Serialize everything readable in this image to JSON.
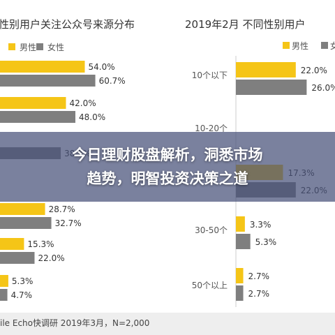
{
  "colors": {
    "male": "#f5c517",
    "female": "#7f7f7f",
    "text": "#333333",
    "banner_bg": "#465078"
  },
  "banner": {
    "line1": "今日理财股盘解析，洞悉市场",
    "line2": "趋势，明智投资决策之道"
  },
  "footer": {
    "text": "ile Echo快调研 2019年3月，N=2,000"
  },
  "chart_data": [
    {
      "type": "bar",
      "orientation": "horizontal",
      "title": "性别用户关注公众号来源分布",
      "legend": [
        "男性",
        "女性"
      ],
      "legend_position": "top-left",
      "series": [
        {
          "name": "男性",
          "values": [
            54.0,
            42.0,
            null,
            null,
            28.7,
            15.3,
            5.3
          ]
        },
        {
          "name": "女性",
          "values": [
            60.7,
            48.0,
            38.7,
            null,
            32.7,
            22.0,
            4.7
          ]
        }
      ],
      "labels": {
        "男性": [
          "54.0%",
          "42.0%",
          "",
          "",
          "28.7%",
          "15.3%",
          "5.3%"
        ],
        "女性": [
          "60.7%",
          "48.0%",
          "38.7%",
          "",
          "32.7%",
          "22.0%",
          "4.7%"
        ]
      }
    },
    {
      "type": "bar",
      "orientation": "horizontal",
      "title": "2019年2月 不同性别用户",
      "legend": [
        "男性",
        "女"
      ],
      "legend_position": "top-right",
      "categories": [
        "10个以下",
        "10-20个",
        "",
        "30-50个",
        "50个以上"
      ],
      "series": [
        {
          "name": "男性",
          "values": [
            22.0,
            null,
            17.3,
            3.3,
            2.7
          ]
        },
        {
          "name": "女性",
          "values": [
            26.0,
            null,
            22.0,
            5.3,
            2.7
          ]
        }
      ],
      "labels": {
        "男性": [
          "22.0%",
          "",
          "17.3%",
          "3.3%",
          "2.7%"
        ],
        "女性": [
          "26.0%",
          "",
          "22.0%",
          "5.3%",
          "2.7%"
        ]
      }
    }
  ]
}
